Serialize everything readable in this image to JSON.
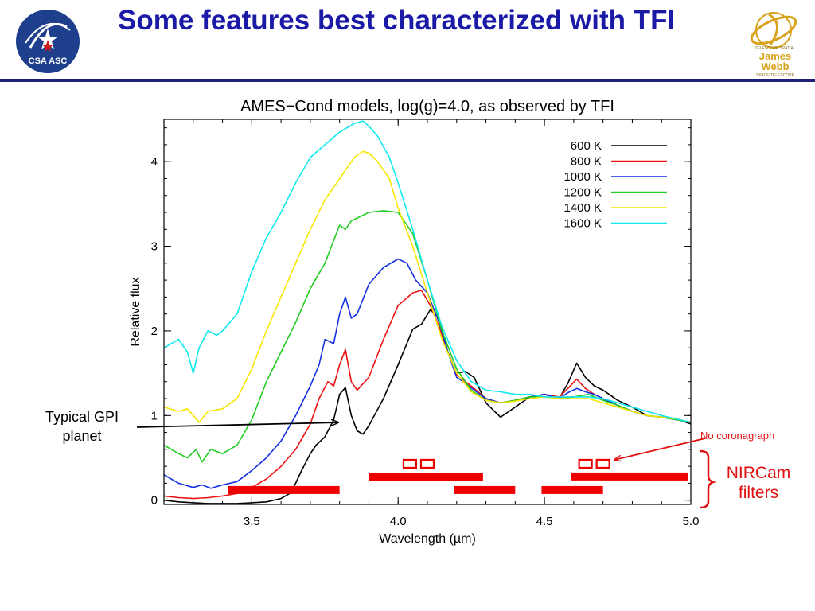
{
  "slide": {
    "title": "Some features best characterized with TFI",
    "logo_left_text": "CSA ASC",
    "logo_right_lines": [
      "TELESCOPE SPATIAL",
      "James",
      "Webb",
      "SPACE TELESCOPE"
    ]
  },
  "annotations": {
    "gpi_label": "Typical GPI planet",
    "coronagraph_label": "No coronagraph",
    "nircam_label": "NIRCam filters"
  },
  "colors": {
    "title": "#1a1aa6",
    "rule": "#1f1f7a",
    "filters": "#ee0000",
    "annotation_red": "#e01010"
  },
  "chart_data": {
    "type": "line",
    "title": "AMES−Cond models, log(g)=4.0, as observed by TFI",
    "xlabel": "Wavelength (µm)",
    "ylabel": "Relative flux",
    "xlim": [
      3.2,
      5.0
    ],
    "ylim": [
      -0.05,
      4.5
    ],
    "xticks": [
      3.5,
      4.0,
      4.5,
      5.0
    ],
    "xtick_labels": [
      "3.5",
      "4.0",
      "4.5",
      "5.0"
    ],
    "yticks": [
      0,
      1,
      2,
      3,
      4
    ],
    "ytick_labels": [
      "0",
      "1",
      "2",
      "3",
      "4"
    ],
    "legend_position": "top-right",
    "grid": false,
    "series": [
      {
        "name": "600 K",
        "color": "#000000",
        "x": [
          3.2,
          3.25,
          3.3,
          3.35,
          3.4,
          3.45,
          3.5,
          3.55,
          3.6,
          3.63,
          3.65,
          3.67,
          3.7,
          3.72,
          3.75,
          3.78,
          3.8,
          3.82,
          3.84,
          3.86,
          3.88,
          3.9,
          3.95,
          4.0,
          4.05,
          4.08,
          4.11,
          4.14,
          4.17,
          4.2,
          4.23,
          4.26,
          4.3,
          4.35,
          4.4,
          4.45,
          4.5,
          4.55,
          4.58,
          4.61,
          4.64,
          4.67,
          4.7,
          4.75,
          4.8,
          4.85,
          4.9,
          4.95,
          5.0
        ],
        "y": [
          0.0,
          -0.02,
          -0.03,
          -0.04,
          -0.04,
          -0.04,
          -0.03,
          -0.02,
          0.02,
          0.08,
          0.2,
          0.35,
          0.55,
          0.65,
          0.75,
          0.95,
          1.25,
          1.33,
          1.0,
          0.82,
          0.78,
          0.88,
          1.2,
          1.6,
          2.02,
          2.08,
          2.25,
          2.15,
          1.75,
          1.5,
          1.52,
          1.45,
          1.15,
          0.98,
          1.1,
          1.22,
          1.25,
          1.2,
          1.38,
          1.62,
          1.45,
          1.35,
          1.3,
          1.18,
          1.1,
          1.0,
          0.98,
          0.96,
          0.9
        ]
      },
      {
        "name": "800 K",
        "color": "#ee1111",
        "x": [
          3.2,
          3.25,
          3.3,
          3.35,
          3.4,
          3.45,
          3.5,
          3.55,
          3.6,
          3.65,
          3.7,
          3.73,
          3.76,
          3.78,
          3.8,
          3.82,
          3.84,
          3.86,
          3.9,
          3.95,
          4.0,
          4.05,
          4.08,
          4.11,
          4.14,
          4.17,
          4.2,
          4.23,
          4.26,
          4.3,
          4.35,
          4.4,
          4.45,
          4.5,
          4.55,
          4.58,
          4.61,
          4.64,
          4.67,
          4.7,
          4.75,
          4.8,
          4.85,
          4.9,
          4.95,
          5.0
        ],
        "y": [
          0.05,
          0.03,
          0.02,
          0.03,
          0.05,
          0.08,
          0.15,
          0.25,
          0.4,
          0.6,
          0.9,
          1.2,
          1.4,
          1.35,
          1.6,
          1.78,
          1.4,
          1.3,
          1.45,
          1.9,
          2.3,
          2.45,
          2.48,
          2.3,
          2.05,
          1.75,
          1.48,
          1.4,
          1.32,
          1.2,
          1.15,
          1.18,
          1.22,
          1.25,
          1.22,
          1.32,
          1.43,
          1.32,
          1.25,
          1.2,
          1.12,
          1.05,
          1.0,
          0.98,
          0.96,
          0.92
        ]
      },
      {
        "name": "1000 K",
        "color": "#1530e0",
        "x": [
          3.2,
          3.25,
          3.3,
          3.33,
          3.36,
          3.4,
          3.45,
          3.5,
          3.55,
          3.6,
          3.65,
          3.7,
          3.73,
          3.75,
          3.78,
          3.8,
          3.82,
          3.84,
          3.86,
          3.9,
          3.95,
          4.0,
          4.03,
          4.06,
          4.1,
          4.14,
          4.17,
          4.2,
          4.23,
          4.26,
          4.3,
          4.35,
          4.4,
          4.45,
          4.5,
          4.55,
          4.58,
          4.61,
          4.64,
          4.67,
          4.7,
          4.75,
          4.8,
          4.85,
          4.9,
          4.95,
          5.0
        ],
        "y": [
          0.3,
          0.2,
          0.15,
          0.18,
          0.14,
          0.18,
          0.22,
          0.35,
          0.5,
          0.7,
          1.0,
          1.35,
          1.6,
          1.9,
          1.85,
          2.2,
          2.4,
          2.15,
          2.2,
          2.55,
          2.75,
          2.85,
          2.8,
          2.6,
          2.45,
          2.1,
          1.75,
          1.45,
          1.38,
          1.3,
          1.2,
          1.15,
          1.18,
          1.22,
          1.25,
          1.2,
          1.27,
          1.32,
          1.28,
          1.25,
          1.2,
          1.12,
          1.05,
          1.0,
          0.98,
          0.95,
          0.92
        ]
      },
      {
        "name": "1200 K",
        "color": "#22cc22",
        "x": [
          3.2,
          3.25,
          3.28,
          3.31,
          3.33,
          3.36,
          3.4,
          3.45,
          3.5,
          3.55,
          3.6,
          3.65,
          3.7,
          3.75,
          3.8,
          3.82,
          3.84,
          3.87,
          3.9,
          3.95,
          4.0,
          4.05,
          4.1,
          4.15,
          4.2,
          4.25,
          4.3,
          4.35,
          4.4,
          4.45,
          4.5,
          4.55,
          4.6,
          4.65,
          4.7,
          4.75,
          4.8,
          4.85,
          4.9,
          4.95,
          5.0
        ],
        "y": [
          0.65,
          0.55,
          0.5,
          0.6,
          0.45,
          0.6,
          0.55,
          0.65,
          0.95,
          1.4,
          1.75,
          2.1,
          2.5,
          2.8,
          3.25,
          3.2,
          3.3,
          3.35,
          3.4,
          3.42,
          3.4,
          3.15,
          2.6,
          2.0,
          1.55,
          1.3,
          1.18,
          1.15,
          1.18,
          1.22,
          1.22,
          1.2,
          1.22,
          1.25,
          1.18,
          1.12,
          1.05,
          1.0,
          0.98,
          0.95,
          0.92
        ]
      },
      {
        "name": "1400 K",
        "color": "#f5e600",
        "x": [
          3.2,
          3.25,
          3.28,
          3.3,
          3.32,
          3.35,
          3.4,
          3.45,
          3.5,
          3.55,
          3.6,
          3.65,
          3.7,
          3.75,
          3.8,
          3.85,
          3.88,
          3.9,
          3.93,
          3.97,
          4.0,
          4.05,
          4.1,
          4.15,
          4.2,
          4.25,
          4.3,
          4.35,
          4.4,
          4.45,
          4.5,
          4.55,
          4.6,
          4.65,
          4.7,
          4.75,
          4.8,
          4.85,
          4.9,
          4.95,
          5.0
        ],
        "y": [
          1.1,
          1.05,
          1.08,
          1.0,
          0.92,
          1.05,
          1.08,
          1.2,
          1.55,
          2.0,
          2.4,
          2.8,
          3.2,
          3.55,
          3.8,
          4.05,
          4.12,
          4.1,
          4.0,
          3.8,
          3.45,
          3.0,
          2.45,
          1.9,
          1.5,
          1.28,
          1.18,
          1.15,
          1.17,
          1.2,
          1.22,
          1.2,
          1.2,
          1.2,
          1.15,
          1.1,
          1.05,
          1.0,
          0.98,
          0.96,
          0.92
        ]
      },
      {
        "name": "1600 K",
        "color": "#10e8f0",
        "x": [
          3.2,
          3.25,
          3.28,
          3.3,
          3.32,
          3.35,
          3.38,
          3.4,
          3.45,
          3.5,
          3.55,
          3.6,
          3.65,
          3.7,
          3.75,
          3.8,
          3.85,
          3.88,
          3.9,
          3.93,
          3.97,
          4.0,
          4.05,
          4.1,
          4.15,
          4.2,
          4.25,
          4.3,
          4.35,
          4.4,
          4.45,
          4.5,
          4.55,
          4.6,
          4.65,
          4.7,
          4.75,
          4.8,
          4.85,
          4.9,
          4.95,
          5.0
        ],
        "y": [
          1.8,
          1.9,
          1.75,
          1.5,
          1.8,
          2.0,
          1.95,
          2.0,
          2.2,
          2.7,
          3.1,
          3.4,
          3.75,
          4.05,
          4.2,
          4.35,
          4.45,
          4.48,
          4.42,
          4.3,
          4.05,
          3.75,
          3.2,
          2.6,
          2.05,
          1.65,
          1.4,
          1.3,
          1.28,
          1.25,
          1.25,
          1.22,
          1.22,
          1.22,
          1.22,
          1.2,
          1.15,
          1.1,
          1.05,
          1.0,
          0.96,
          0.92
        ]
      }
    ],
    "filter_bars": [
      {
        "x": [
          3.42,
          3.8
        ],
        "y": 0.12
      },
      {
        "x": [
          3.9,
          4.29
        ],
        "y": 0.27
      },
      {
        "x": [
          4.19,
          4.4
        ],
        "y": 0.12
      },
      {
        "x": [
          4.49,
          4.7
        ],
        "y": 0.12
      },
      {
        "x": [
          4.59,
          4.99
        ],
        "y": 0.28
      }
    ],
    "coronagraph_filters": [
      {
        "x": 4.04,
        "y": 0.43
      },
      {
        "x": 4.1,
        "y": 0.43
      },
      {
        "x": 4.64,
        "y": 0.43
      },
      {
        "x": 4.7,
        "y": 0.43
      }
    ]
  }
}
